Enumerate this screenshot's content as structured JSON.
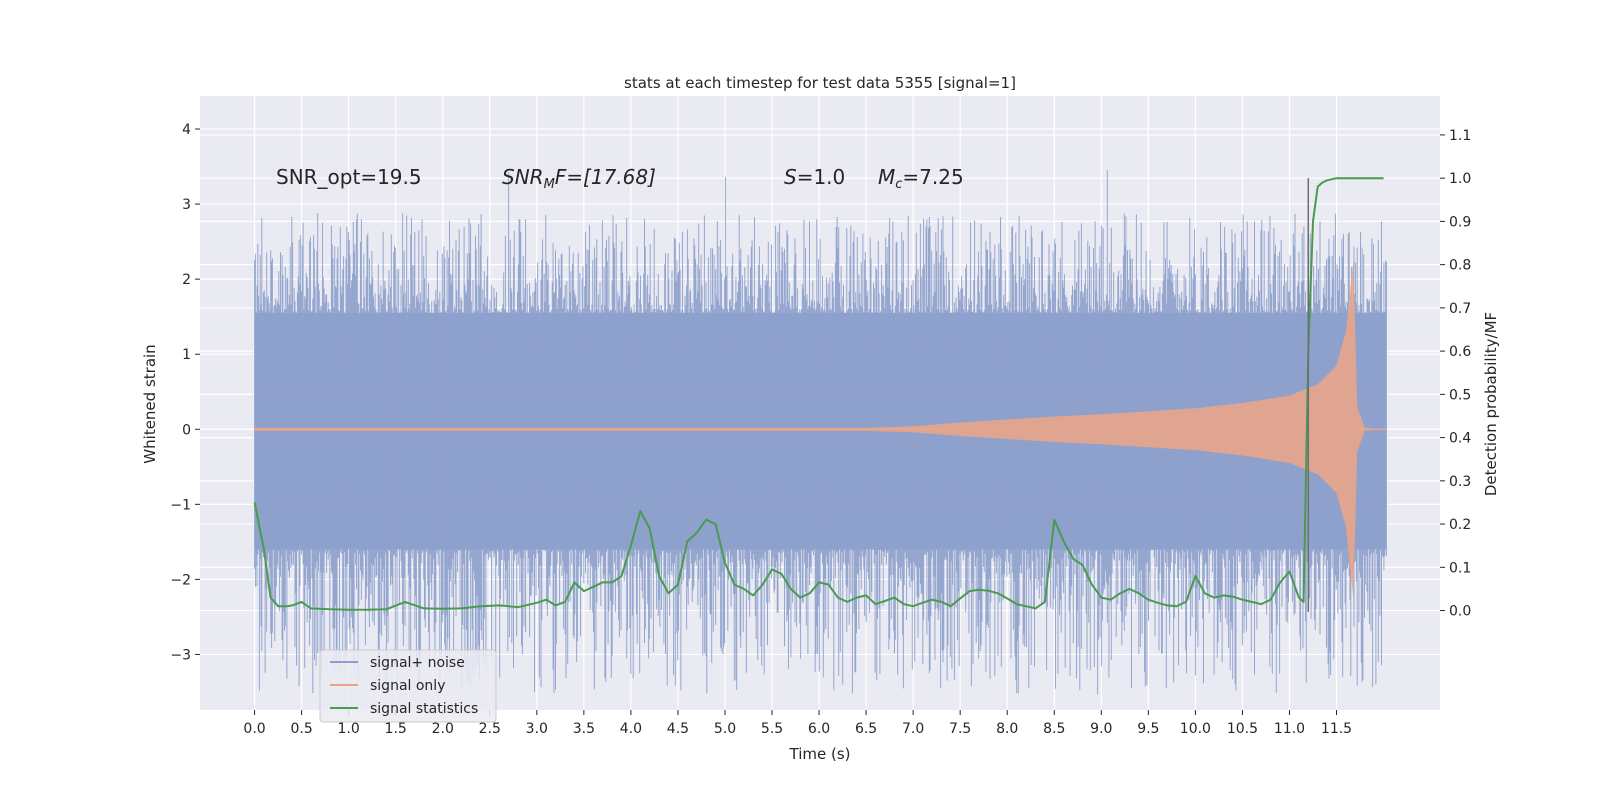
{
  "chart_data": {
    "type": "line",
    "title": "stats at each timestep for test data 5355 [signal=1]",
    "xlabel": "Time (s)",
    "ylabel": "Whitened strain",
    "ylabel_right": "Detection probability/MF",
    "xlim": [
      -0.58,
      12.6
    ],
    "ylim": [
      -3.74,
      4.44
    ],
    "ylim_right": [
      -0.23,
      1.19
    ],
    "x_ticks": [
      "0.0",
      "0.5",
      "1.0",
      "1.5",
      "2.0",
      "2.5",
      "3.0",
      "3.5",
      "4.0",
      "4.5",
      "5.0",
      "5.5",
      "6.0",
      "6.5",
      "7.0",
      "7.5",
      "8.0",
      "8.5",
      "9.0",
      "9.5",
      "10.0",
      "10.5",
      "11.0",
      "11.5"
    ],
    "y_ticks_left": [
      "−3",
      "−2",
      "−1",
      "0",
      "1",
      "2",
      "3",
      "4"
    ],
    "y_ticks_right": [
      "0.0",
      "0.1",
      "0.2",
      "0.3",
      "0.4",
      "0.5",
      "0.6",
      "0.7",
      "0.8",
      "0.9",
      "1.0",
      "1.1"
    ],
    "annotations": {
      "snr_opt": "SNR_opt=19.5",
      "snr_mf_sym": "SNR",
      "snr_mf_sub": "M",
      "snr_mf_rest": "F=[17.68]",
      "s_sym": "S",
      "s_rest": "=1.0",
      "mc_sym": "M",
      "mc_sub": "c",
      "mc_rest": "=7.25"
    },
    "legend": {
      "location": "lower-left",
      "entries": [
        {
          "label": "signal+ noise",
          "color": "#8da0cb"
        },
        {
          "label": "signal only",
          "color": "#e8a58a"
        },
        {
          "label": "signal statistics",
          "color": "#4a9a4f"
        }
      ]
    },
    "series": [
      {
        "name": "signal+ noise",
        "axis": "left",
        "color": "#8da0cb",
        "t_range": [
          0.0,
          12.03
        ],
        "band_core": [
          -1.6,
          1.55
        ],
        "typical_peak": 2.4,
        "max_peak": 4.1,
        "min_trough": -3.35
      },
      {
        "name": "signal only",
        "axis": "left",
        "color": "#e8a58a",
        "envelope": {
          "t": [
            0.0,
            6.5,
            7.0,
            7.5,
            8.0,
            8.5,
            9.0,
            9.5,
            10.0,
            10.5,
            11.0,
            11.3,
            11.5,
            11.6,
            11.65,
            11.68,
            11.72,
            11.8,
            12.03
          ],
          "amp": [
            0.02,
            0.02,
            0.04,
            0.09,
            0.13,
            0.17,
            0.2,
            0.24,
            0.28,
            0.35,
            0.45,
            0.6,
            0.85,
            1.3,
            1.9,
            2.25,
            0.3,
            0.02,
            0.0
          ]
        }
      },
      {
        "name": "signal statistics",
        "axis": "right",
        "color": "#4a9a4f",
        "x": [
          0.0,
          0.1,
          0.17,
          0.25,
          0.3,
          0.35,
          0.4,
          0.5,
          0.6,
          0.8,
          1.0,
          1.2,
          1.4,
          1.6,
          1.8,
          2.0,
          2.2,
          2.4,
          2.6,
          2.8,
          3.0,
          3.1,
          3.2,
          3.3,
          3.4,
          3.5,
          3.6,
          3.7,
          3.8,
          3.9,
          4.0,
          4.1,
          4.2,
          4.3,
          4.4,
          4.5,
          4.6,
          4.7,
          4.8,
          4.9,
          5.0,
          5.1,
          5.2,
          5.3,
          5.4,
          5.5,
          5.6,
          5.7,
          5.8,
          5.9,
          6.0,
          6.1,
          6.2,
          6.3,
          6.4,
          6.5,
          6.6,
          6.7,
          6.8,
          6.9,
          7.0,
          7.1,
          7.2,
          7.3,
          7.4,
          7.5,
          7.6,
          7.7,
          7.8,
          7.9,
          8.0,
          8.1,
          8.2,
          8.3,
          8.4,
          8.5,
          8.6,
          8.7,
          8.8,
          8.9,
          9.0,
          9.1,
          9.2,
          9.3,
          9.4,
          9.5,
          9.6,
          9.7,
          9.8,
          9.9,
          10.0,
          10.1,
          10.2,
          10.3,
          10.4,
          10.5,
          10.6,
          10.7,
          10.8,
          10.9,
          11.0,
          11.1,
          11.15,
          11.2,
          11.25,
          11.3,
          11.35,
          11.4,
          11.5,
          11.6,
          11.7,
          11.8,
          11.9,
          12.0
        ],
        "values": [
          0.25,
          0.14,
          0.03,
          0.01,
          0.01,
          0.01,
          0.012,
          0.02,
          0.005,
          0.003,
          0.002,
          0.002,
          0.003,
          0.02,
          0.005,
          0.004,
          0.005,
          0.01,
          0.012,
          0.008,
          0.018,
          0.025,
          0.012,
          0.02,
          0.065,
          0.045,
          0.055,
          0.065,
          0.065,
          0.08,
          0.15,
          0.23,
          0.19,
          0.08,
          0.04,
          0.06,
          0.16,
          0.18,
          0.21,
          0.2,
          0.11,
          0.06,
          0.05,
          0.035,
          0.06,
          0.095,
          0.085,
          0.05,
          0.03,
          0.04,
          0.065,
          0.06,
          0.03,
          0.02,
          0.03,
          0.035,
          0.015,
          0.022,
          0.03,
          0.015,
          0.01,
          0.018,
          0.025,
          0.02,
          0.01,
          0.028,
          0.045,
          0.048,
          0.046,
          0.04,
          0.028,
          0.015,
          0.01,
          0.005,
          0.02,
          0.21,
          0.16,
          0.12,
          0.105,
          0.06,
          0.03,
          0.025,
          0.04,
          0.05,
          0.04,
          0.025,
          0.018,
          0.012,
          0.01,
          0.02,
          0.08,
          0.04,
          0.03,
          0.035,
          0.032,
          0.025,
          0.02,
          0.015,
          0.025,
          0.065,
          0.09,
          0.03,
          0.02,
          0.6,
          0.9,
          0.98,
          0.99,
          0.995,
          1.0,
          1.0,
          1.0,
          1.0,
          1.0,
          1.0
        ]
      }
    ],
    "vertical_marker": {
      "x": 11.2,
      "y_from": -0.003,
      "y_to": 1.0,
      "color": "#6e6e6e"
    }
  }
}
